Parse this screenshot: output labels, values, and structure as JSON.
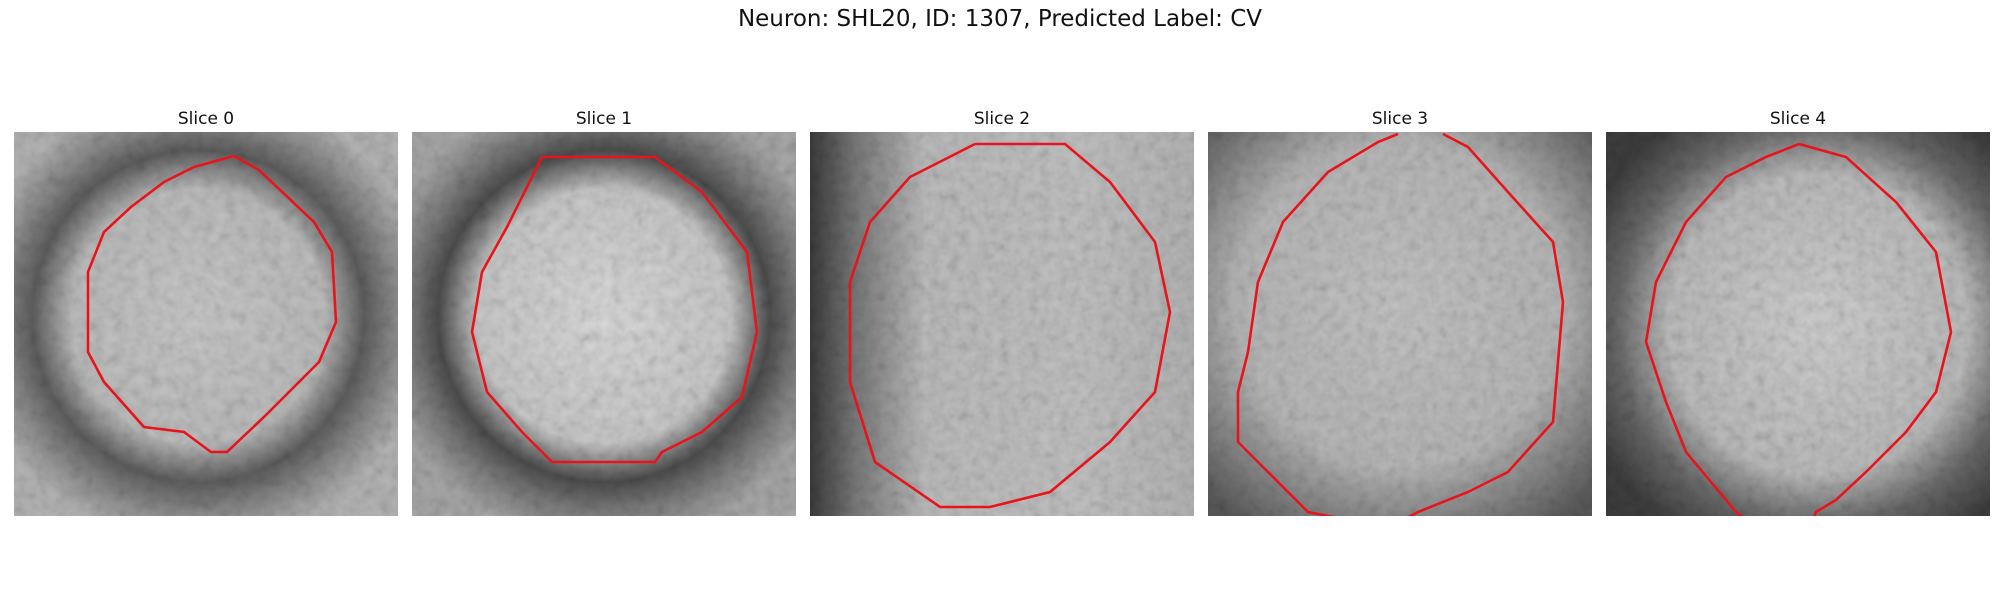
{
  "title": "Neuron: SHL20, ID: 1307, Predicted Label: CV",
  "outline_color": "#e8141c",
  "panels": [
    {
      "title": "Slice 0"
    },
    {
      "title": "Slice 1"
    },
    {
      "title": "Slice 2"
    },
    {
      "title": "Slice 3"
    },
    {
      "title": "Slice 4"
    }
  ]
}
